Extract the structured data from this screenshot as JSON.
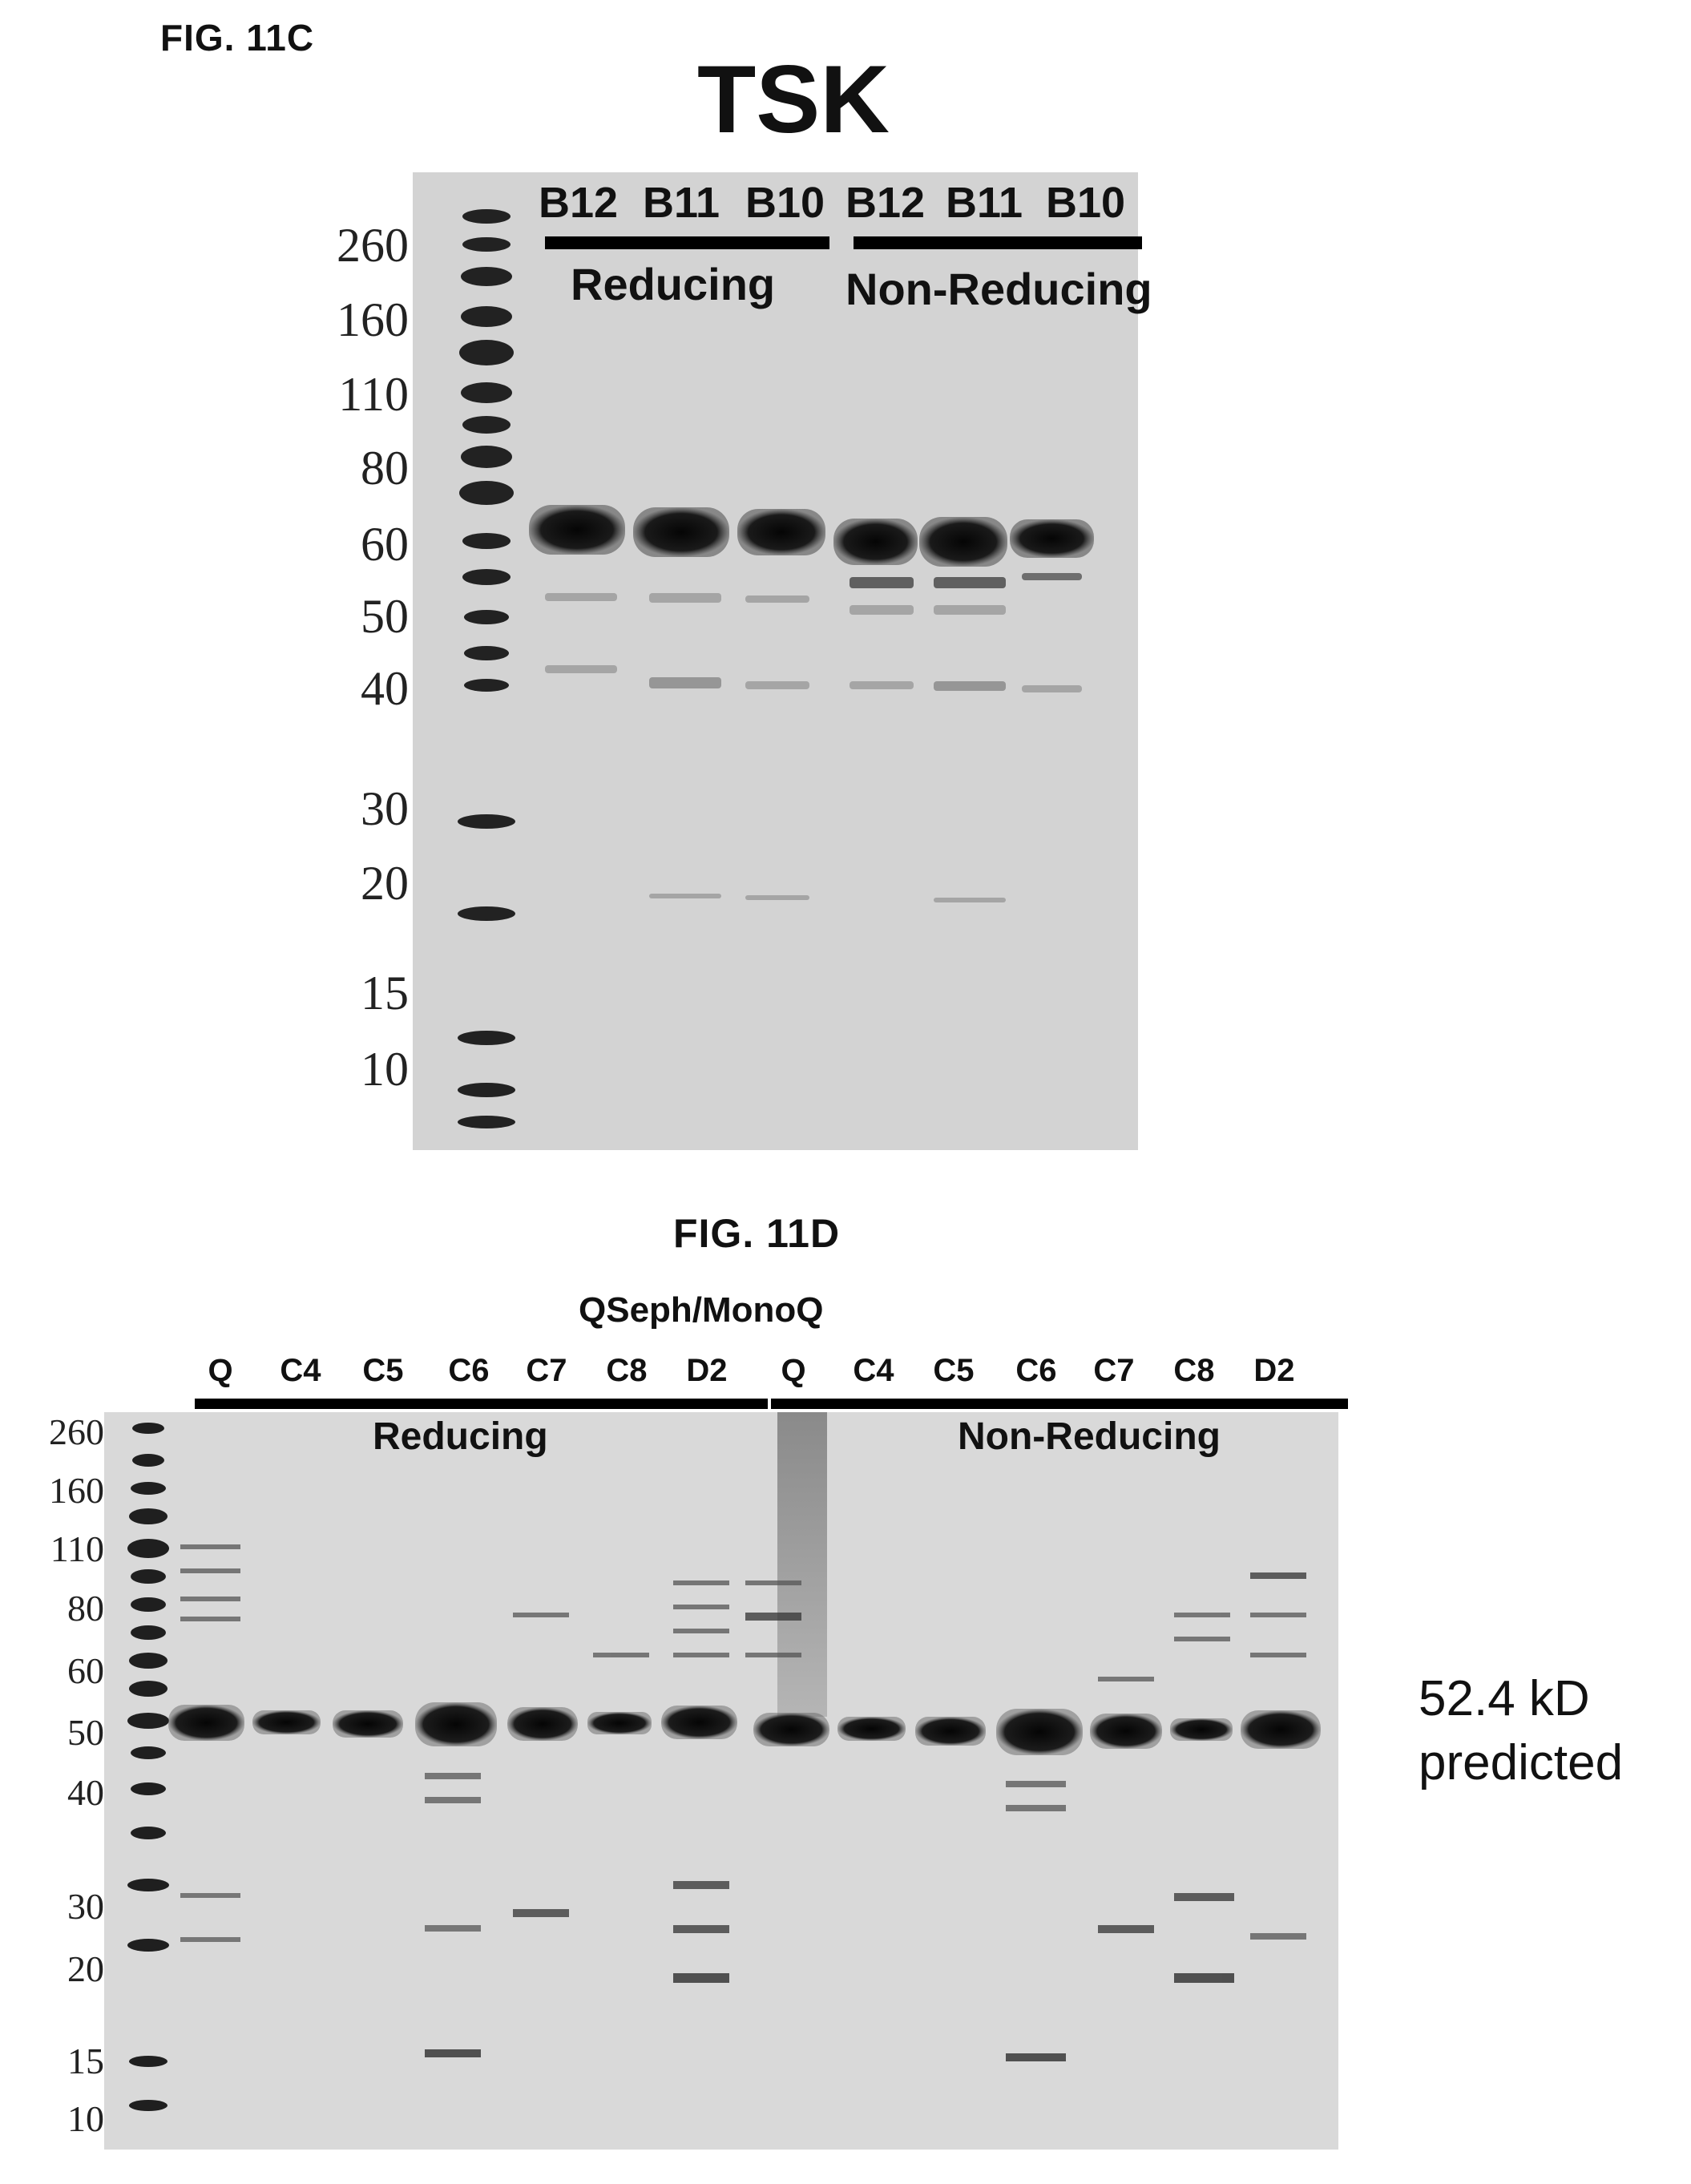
{
  "fig_c": {
    "label": "FIG. 11C",
    "title": "TSK",
    "markers": [
      "260",
      "160",
      "110",
      "80",
      "60",
      "50",
      "40",
      "30",
      "20",
      "15",
      "10"
    ],
    "lanes": [
      "B12",
      "B11",
      "B10",
      "B12",
      "B11",
      "B10"
    ],
    "conditions": [
      "Reducing",
      "Non-Reducing"
    ]
  },
  "fig_d": {
    "label": "FIG. 11D",
    "title": "QSeph/MonoQ",
    "markers": [
      "260",
      "160",
      "110",
      "80",
      "60",
      "50",
      "40",
      "30",
      "20",
      "15",
      "10"
    ],
    "lanes": [
      "Q",
      "C4",
      "C5",
      "C6",
      "C7",
      "C8",
      "D2",
      "Q",
      "C4",
      "C5",
      "C6",
      "C7",
      "C8",
      "D2"
    ],
    "conditions": [
      "Reducing",
      "Non-Reducing"
    ],
    "annotation_line1": "52.4 kD",
    "annotation_line2": "predicted"
  }
}
